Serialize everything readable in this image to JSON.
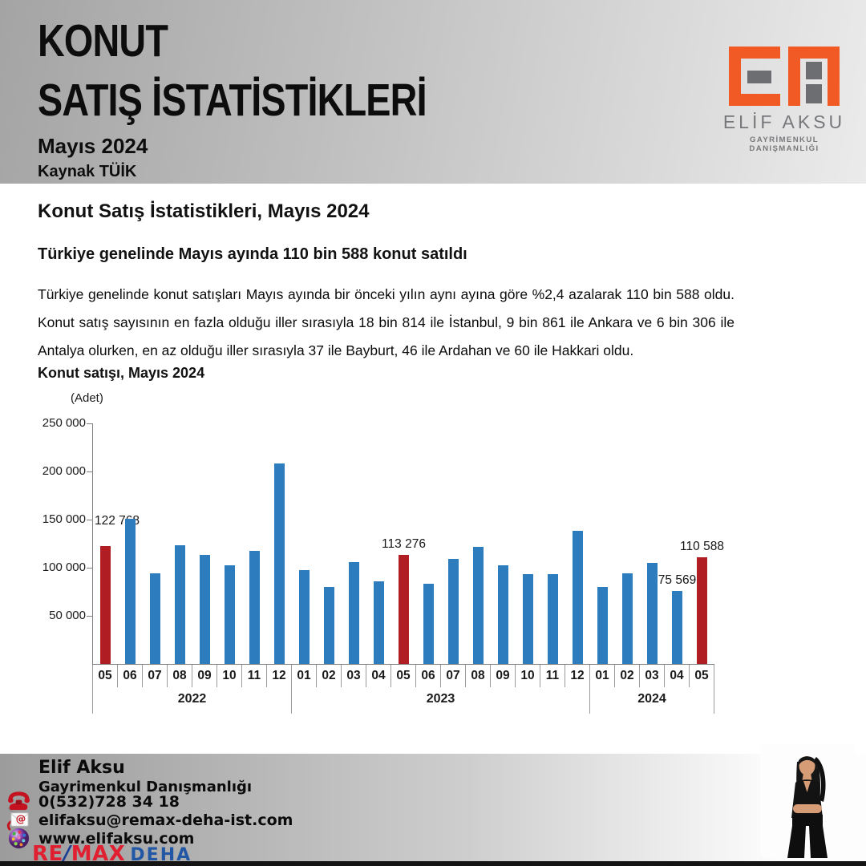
{
  "header": {
    "title_line1": "KONUT",
    "title_line2": "SATIŞ İSTATİSTİKLERİ",
    "subtitle": "Mayıs 2024",
    "source": "Kaynak TÜİK"
  },
  "logo": {
    "name": "ELİF AKSU",
    "tagline": "GAYRİMENKUL DANIŞMANLIĞI",
    "orange": "#f15a24",
    "gray": "#6d6e71"
  },
  "article": {
    "heading": "Konut Satış İstatistikleri, Mayıs 2024",
    "subheading": "Türkiye genelinde Mayıs ayında 110 bin 588 konut satıldı",
    "body": "Türkiye genelinde konut satışları Mayıs ayında bir önceki yılın aynı ayına göre %2,4 azalarak 110 bin 588 oldu. Konut satış sayısının en fazla olduğu iller sırasıyla 18 bin 814 ile İstanbul, 9 bin 861 ile Ankara ve 6 bin 306 ile Antalya olurken, en az olduğu iller sırasıyla 37 ile Bayburt, 46 ile Ardahan ve 60 ile Hakkari oldu."
  },
  "chart_data": {
    "type": "bar",
    "title": "Konut satışı, Mayıs 2024",
    "unit_label": "(Adet)",
    "ylabel": "Adet",
    "ylim": [
      0,
      250000
    ],
    "ytick_values": [
      250000,
      200000,
      150000,
      100000,
      50000
    ],
    "ytick_labels": [
      "250 000",
      "200 000",
      "150 000",
      "100 000",
      "50 000"
    ],
    "grid": false,
    "colors": {
      "bar": "#2d7dbe",
      "highlight": "#b01e23"
    },
    "bars": [
      {
        "month": "05",
        "year": "2022",
        "value": 122768,
        "highlight": true,
        "label": "122 768"
      },
      {
        "month": "06",
        "year": "2022",
        "value": 150509,
        "highlight": false,
        "label": ""
      },
      {
        "month": "07",
        "year": "2022",
        "value": 93902,
        "highlight": false,
        "label": ""
      },
      {
        "month": "08",
        "year": "2022",
        "value": 123491,
        "highlight": false,
        "label": ""
      },
      {
        "month": "09",
        "year": "2022",
        "value": 113402,
        "highlight": false,
        "label": ""
      },
      {
        "month": "10",
        "year": "2022",
        "value": 102660,
        "highlight": false,
        "label": ""
      },
      {
        "month": "11",
        "year": "2022",
        "value": 117806,
        "highlight": false,
        "label": ""
      },
      {
        "month": "12",
        "year": "2022",
        "value": 207963,
        "highlight": false,
        "label": ""
      },
      {
        "month": "01",
        "year": "2023",
        "value": 97708,
        "highlight": false,
        "label": ""
      },
      {
        "month": "02",
        "year": "2023",
        "value": 80031,
        "highlight": false,
        "label": ""
      },
      {
        "month": "03",
        "year": "2023",
        "value": 105476,
        "highlight": false,
        "label": ""
      },
      {
        "month": "04",
        "year": "2023",
        "value": 85652,
        "highlight": false,
        "label": ""
      },
      {
        "month": "05",
        "year": "2023",
        "value": 113276,
        "highlight": true,
        "label": "113 276"
      },
      {
        "month": "06",
        "year": "2023",
        "value": 83636,
        "highlight": false,
        "label": ""
      },
      {
        "month": "07",
        "year": "2023",
        "value": 109548,
        "highlight": false,
        "label": ""
      },
      {
        "month": "08",
        "year": "2023",
        "value": 122091,
        "highlight": false,
        "label": ""
      },
      {
        "month": "09",
        "year": "2023",
        "value": 102656,
        "highlight": false,
        "label": ""
      },
      {
        "month": "10",
        "year": "2023",
        "value": 93761,
        "highlight": false,
        "label": ""
      },
      {
        "month": "11",
        "year": "2023",
        "value": 93514,
        "highlight": false,
        "label": ""
      },
      {
        "month": "12",
        "year": "2023",
        "value": 138577,
        "highlight": false,
        "label": ""
      },
      {
        "month": "01",
        "year": "2024",
        "value": 80308,
        "highlight": false,
        "label": ""
      },
      {
        "month": "02",
        "year": "2024",
        "value": 93902,
        "highlight": false,
        "label": ""
      },
      {
        "month": "03",
        "year": "2024",
        "value": 105394,
        "highlight": false,
        "label": ""
      },
      {
        "month": "04",
        "year": "2024",
        "value": 75569,
        "highlight": false,
        "label": "75 569"
      },
      {
        "month": "05",
        "year": "2024",
        "value": 110588,
        "highlight": true,
        "label": "110 588"
      }
    ],
    "year_groups": [
      {
        "label": "2022",
        "months": 8
      },
      {
        "label": "2023",
        "months": 12
      },
      {
        "label": "2024",
        "months": 5
      }
    ],
    "legend": null
  },
  "footer": {
    "name": "Elif Aksu",
    "role": "Gayrimenkul Danışmanlığı",
    "phone": "0(532)728 34 18",
    "email": "elifaksu@remax-deha-ist.com",
    "website": "www.elifaksu.com",
    "brand": {
      "re": "RE",
      "slash": "/",
      "max": "MAX",
      "suffix": "DEHA"
    }
  }
}
